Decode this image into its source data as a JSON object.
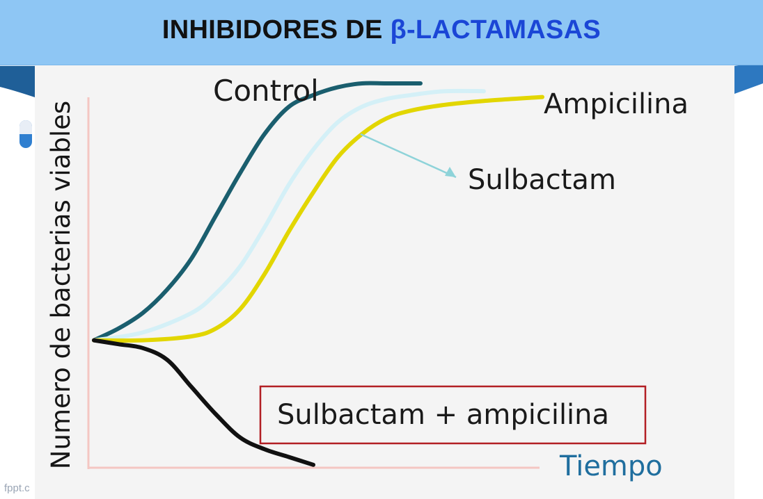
{
  "slide": {
    "title_main": "INHIBIDORES DE ",
    "title_accent": "β-LACTAMASAS",
    "footer_mark": "fppt.c",
    "colors": {
      "title_bar": "#8ec6f4",
      "title_accent": "#1b46d6",
      "panel": "#f4f4f4"
    }
  },
  "chart_data": {
    "type": "line",
    "title": "",
    "xlabel": "Tiempo",
    "ylabel": "Numero de bacterias viables",
    "x": [
      0,
      0.1,
      0.2,
      0.3,
      0.4,
      0.5,
      0.6,
      0.7,
      0.8,
      0.9,
      1.0
    ],
    "xlim": [
      0,
      1
    ],
    "ylim": [
      0,
      1
    ],
    "grid": false,
    "series": [
      {
        "name": "Control",
        "color": "#1a5e6e",
        "x": [
          0,
          0.05,
          0.1,
          0.15,
          0.2,
          0.25,
          0.3,
          0.35,
          0.4,
          0.45,
          0.5,
          0.55,
          0.6,
          0.67
        ],
        "values": [
          0.34,
          0.37,
          0.41,
          0.47,
          0.55,
          0.66,
          0.77,
          0.87,
          0.94,
          0.97,
          0.99,
          1.0,
          1.0,
          1.0
        ]
      },
      {
        "name": "Sulbactam",
        "color": "#d4f0f7",
        "x": [
          0,
          0.1,
          0.2,
          0.25,
          0.3,
          0.35,
          0.4,
          0.45,
          0.5,
          0.55,
          0.6,
          0.65,
          0.72,
          0.8
        ],
        "values": [
          0.34,
          0.36,
          0.41,
          0.46,
          0.53,
          0.63,
          0.74,
          0.83,
          0.9,
          0.94,
          0.96,
          0.97,
          0.98,
          0.98
        ]
      },
      {
        "name": "Ampicilina",
        "color": "#e2d600",
        "x": [
          0,
          0.1,
          0.2,
          0.25,
          0.3,
          0.35,
          0.4,
          0.45,
          0.5,
          0.55,
          0.6,
          0.65,
          0.72,
          0.8,
          0.92
        ],
        "values": [
          0.34,
          0.34,
          0.35,
          0.37,
          0.42,
          0.51,
          0.62,
          0.72,
          0.81,
          0.87,
          0.91,
          0.93,
          0.945,
          0.955,
          0.965
        ]
      },
      {
        "name": "Sulbactam + ampicilina",
        "color": "#111111",
        "x": [
          0,
          0.05,
          0.1,
          0.15,
          0.2,
          0.25,
          0.3,
          0.35,
          0.4,
          0.45
        ],
        "values": [
          0.34,
          0.33,
          0.32,
          0.29,
          0.22,
          0.15,
          0.09,
          0.06,
          0.04,
          0.02
        ]
      }
    ],
    "annotations": [
      {
        "text": "Control",
        "series": "Control"
      },
      {
        "text": "Ampicilina",
        "series": "Ampicilina"
      },
      {
        "text": "Sulbactam",
        "series": "Sulbactam",
        "with_arrow": true
      },
      {
        "text": "Sulbactam + ampicilina",
        "series": "Sulbactam + ampicilina",
        "boxed": true,
        "box_color": "#b21f24"
      }
    ],
    "axis_color": "#f4c6c2"
  }
}
